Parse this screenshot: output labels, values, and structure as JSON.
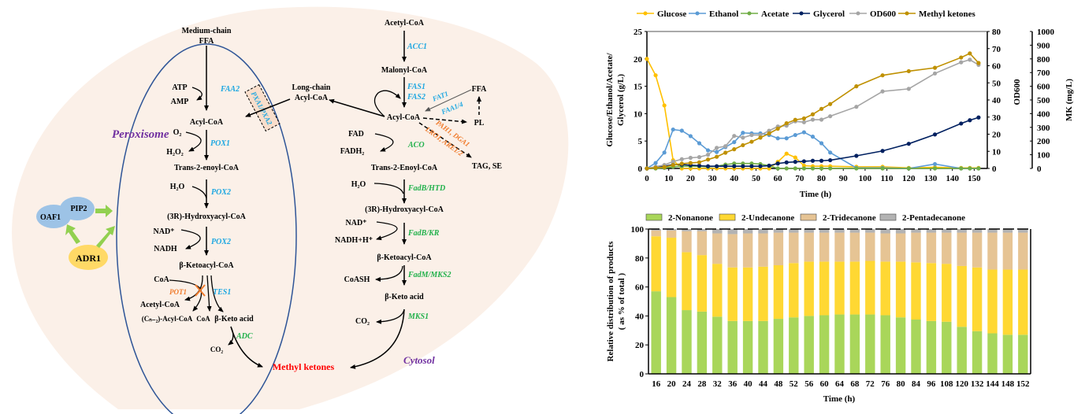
{
  "diagram": {
    "peroxisome_label": "Peroxisome",
    "cytosol_label": "Cytosol",
    "regulators": {
      "oaf1": "OAF1",
      "pip2": "PIP2",
      "adr1": "ADR1"
    },
    "colors": {
      "cell_bg": "#fbf0e8",
      "gene_blue": "#1ea7e1",
      "gene_green": "#22b14c",
      "gene_orange": "#f07b2c",
      "compartment_label": "#7030a0",
      "product_red": "#ff0000",
      "membrane": "#2f5597",
      "reg_blue": "#9dc3e6",
      "reg_yellow": "#ffd966",
      "reg_arrow": "#92d050"
    },
    "peroxisome_path": {
      "start_line1": "Medium-chain",
      "start_line2": "FFA",
      "atp": "ATP",
      "amp": "AMP",
      "faa2": "FAA2",
      "acyl_coa": "Acyl-CoA",
      "o2": "O₂",
      "h2o2": "H₂O₂",
      "pox1": "POX1",
      "trans_enoyl": "Trans-2-enoyl-CoA",
      "h2o": "H₂O",
      "pox2_a": "POX2",
      "hydroxyacyl": "(3R)-Hydroxyacyl-CoA",
      "nad": "NAD⁺",
      "nadh": "NADH",
      "pox2_b": "POX2",
      "ketoacyl": "β-Ketoacyl-CoA",
      "coa": "CoA",
      "pot1": "POT1",
      "tes1": "TES1",
      "acetyl_coa": "Acetyl-CoA",
      "cn2_acyl": "(Cₙ₋₂)-Acyl-CoA",
      "coa2": "CoA",
      "keto_acid": "β-Keto acid",
      "adc": "ADC",
      "co2": "CO₂",
      "transporter": "PXA1/PXA2"
    },
    "long_chain_line1": "Long-chain",
    "long_chain_line2": "Acyl-CoA",
    "methyl_ketones": "Methyl ketones",
    "cytosol_path": {
      "acetyl_coa": "Acetyl-CoA",
      "acc1": "ACC1",
      "malonyl_coa": "Malonyl-CoA",
      "fas1": "FAS1",
      "fas2": "FAS2",
      "acyl_coa": "Acyl-CoA",
      "ffa": "FFA",
      "fat1": "FAT1",
      "faa14": "FAA1/4",
      "pl": "PL",
      "pah1": "PAH1, DGA1",
      "lro1": "LRO1, ARE1/2",
      "tag_se": "TAG, SE",
      "fad": "FAD",
      "fadh2": "FADH₂",
      "aco": "ACO",
      "trans_enoyl": "Trans-2-Enoyl-CoA",
      "h2o": "H₂O",
      "fadb_htd": "FadB/HTD",
      "hydroxyacyl": "(3R)-Hydroxyacyl-CoA",
      "nad": "NAD⁺",
      "nadh": "NADH+H⁺",
      "fadb_kr": "FadB/KR",
      "ketoacyl": "β-Ketoacyl-CoA",
      "coash": "CoASH",
      "fadm_mks2": "FadM/MKS2",
      "keto_acid": "β-Keto acid",
      "co2": "CO₂",
      "mks1": "MKS1"
    }
  },
  "chart_data": [
    {
      "type": "line",
      "title": "",
      "xlabel": "Time (h)",
      "ylabel": "Glucose/Ethanol/Acetate/Glycerol (g/L)",
      "ylabel_line1": "Glucose/Ethanol/Acetate/",
      "ylabel_line2": "Glycerol (g/L)",
      "y2label": "OD600",
      "y3label": "MK (mg/L)",
      "xlim": [
        0,
        156
      ],
      "xticks": [
        0,
        10,
        20,
        30,
        40,
        50,
        60,
        70,
        80,
        90,
        100,
        110,
        120,
        130,
        140,
        150
      ],
      "ylim": [
        0,
        25
      ],
      "yticks": [
        0,
        5,
        10,
        15,
        20,
        25
      ],
      "y2lim": [
        0,
        80
      ],
      "y2ticks": [
        0,
        10,
        20,
        30,
        40,
        50,
        60,
        70,
        80
      ],
      "y3lim": [
        0,
        1000
      ],
      "y3ticks": [
        0,
        100,
        200,
        300,
        400,
        500,
        600,
        700,
        800,
        900,
        1000
      ],
      "legend_position": "top",
      "grid": false,
      "series": [
        {
          "name": "Glucose",
          "axis": "left",
          "color": "#ffc000",
          "x": [
            0,
            4,
            8,
            12,
            16,
            20,
            24,
            28,
            32,
            36,
            40,
            44,
            48,
            52,
            56,
            60,
            64,
            68,
            72,
            76,
            80,
            84,
            96,
            108,
            120,
            132,
            144,
            148,
            152
          ],
          "y": [
            20,
            17,
            11.5,
            1.5,
            0,
            0,
            0,
            0,
            0,
            0,
            0,
            0,
            0,
            0,
            0,
            1.2,
            2.7,
            2.0,
            0.5,
            0.4,
            0.4,
            0.4,
            0.3,
            0.3,
            0.1,
            0.2,
            0.1,
            0.1,
            0.1
          ]
        },
        {
          "name": "Ethanol",
          "axis": "left",
          "color": "#5b9bd5",
          "x": [
            0,
            4,
            8,
            12,
            16,
            20,
            24,
            28,
            32,
            36,
            40,
            44,
            48,
            52,
            56,
            60,
            64,
            68,
            72,
            76,
            80,
            84,
            96,
            108,
            120,
            132,
            144,
            148,
            152
          ],
          "y": [
            0,
            1.0,
            2.9,
            7.1,
            6.9,
            5.9,
            4.6,
            3.3,
            3.0,
            3.9,
            4.8,
            6.5,
            6.4,
            6.4,
            6.1,
            5.5,
            5.5,
            6.1,
            6.6,
            5.8,
            4.6,
            2.9,
            0.1,
            0.1,
            0.0,
            0.8,
            0.0,
            0.0,
            0.0
          ]
        },
        {
          "name": "Acetate",
          "axis": "left",
          "color": "#70ad47",
          "x": [
            0,
            4,
            8,
            12,
            16,
            20,
            24,
            28,
            32,
            36,
            40,
            44,
            48,
            52,
            56,
            60,
            64,
            68,
            72,
            76,
            80,
            84,
            96,
            108,
            120,
            132,
            144,
            148,
            152
          ],
          "y": [
            0,
            0,
            0.1,
            0.3,
            0.4,
            0.4,
            0.4,
            0.3,
            0.4,
            0.7,
            0.9,
            0.9,
            0.9,
            0.8,
            0.5,
            0,
            0,
            0,
            0,
            0,
            0,
            0,
            0,
            0,
            0,
            0,
            0,
            0,
            0
          ]
        },
        {
          "name": "Glycerol",
          "axis": "left",
          "color": "#002060",
          "x": [
            0,
            4,
            8,
            12,
            16,
            20,
            24,
            28,
            32,
            36,
            40,
            44,
            48,
            52,
            56,
            60,
            64,
            68,
            72,
            76,
            80,
            84,
            96,
            108,
            120,
            132,
            144,
            148,
            152
          ],
          "y": [
            0,
            0.2,
            0.4,
            0.7,
            0.7,
            0.6,
            0.5,
            0.4,
            0.4,
            0.4,
            0.4,
            0.4,
            0.4,
            0.4,
            0.5,
            0.9,
            1.1,
            1.2,
            1.3,
            1.4,
            1.4,
            1.5,
            2.3,
            3.2,
            4.5,
            6.2,
            8.2,
            8.8,
            9.3
          ]
        },
        {
          "name": "OD600",
          "axis": "right_od",
          "color": "#a5a5a5",
          "x": [
            0,
            4,
            8,
            12,
            16,
            20,
            24,
            28,
            32,
            36,
            40,
            44,
            48,
            52,
            56,
            60,
            64,
            68,
            72,
            76,
            80,
            84,
            96,
            108,
            120,
            132,
            144,
            148,
            152
          ],
          "y": [
            0,
            1.0,
            2.0,
            4.0,
            5.4,
            6.2,
            6.6,
            8.0,
            12.0,
            13.0,
            19.0,
            18.0,
            19.5,
            19.5,
            22.0,
            24.5,
            25.0,
            27.5,
            27.0,
            28.5,
            28.5,
            30.5,
            36.0,
            45.0,
            46.5,
            55.5,
            62.0,
            63.5,
            60.5
          ]
        },
        {
          "name": "Methyl ketones",
          "axis": "right_mk",
          "color": "#bf9000",
          "x": [
            0,
            4,
            8,
            12,
            16,
            20,
            24,
            28,
            32,
            36,
            40,
            44,
            48,
            52,
            56,
            60,
            64,
            68,
            72,
            76,
            80,
            84,
            96,
            108,
            120,
            132,
            144,
            148,
            152
          ],
          "y": [
            0,
            5,
            10,
            25,
            35,
            40,
            45,
            65,
            85,
            115,
            140,
            170,
            195,
            225,
            255,
            290,
            330,
            355,
            365,
            395,
            435,
            470,
            600,
            680,
            710,
            735,
            810,
            840,
            770
          ]
        }
      ]
    },
    {
      "type": "bar",
      "stacked": true,
      "title": "",
      "xlabel": "Time (h)",
      "ylabel": "Relative distribution of products ( as % of total )",
      "ylabel_line1": "Relative distribution of products",
      "ylabel_line2": "( as % of total )",
      "ylim": [
        0,
        100
      ],
      "yticks": [
        0,
        20,
        40,
        60,
        80,
        100
      ],
      "legend_position": "top",
      "grid": false,
      "categories": [
        "16",
        "20",
        "24",
        "28",
        "32",
        "36",
        "40",
        "44",
        "48",
        "52",
        "56",
        "60",
        "64",
        "68",
        "72",
        "76",
        "80",
        "84",
        "96",
        "108",
        "120",
        "132",
        "144",
        "148",
        "152"
      ],
      "series": [
        {
          "name": "2-Nonanone",
          "color": "#a9d65a",
          "values": [
            57,
            53,
            44,
            43,
            39.5,
            36.5,
            36.5,
            36.5,
            38,
            39,
            40,
            40.5,
            41,
            41,
            41,
            40.5,
            39,
            37.5,
            36.5,
            36,
            32.5,
            29.5,
            28,
            27,
            27
          ]
        },
        {
          "name": "2-Undecanone",
          "color": "#ffd833",
          "values": [
            38,
            41,
            40,
            39,
            36.5,
            37,
            37,
            37.5,
            37,
            37.5,
            37.5,
            37,
            36.5,
            36.5,
            37,
            37,
            38.5,
            39.5,
            40,
            40,
            42,
            44,
            44,
            45,
            45
          ]
        },
        {
          "name": "2-Tridecanone",
          "color": "#e6c494",
          "values": [
            4,
            5,
            14.5,
            16.5,
            21,
            23,
            23.5,
            23,
            22.5,
            21,
            20,
            20,
            20,
            20,
            19.5,
            19.5,
            19.5,
            20.5,
            21,
            21.5,
            23,
            24,
            25.5,
            25.5,
            25.5
          ]
        },
        {
          "name": "2-Pentadecanone",
          "color": "#b3b3b3",
          "values": [
            1,
            1,
            1.5,
            1.5,
            3,
            3.5,
            3,
            3,
            2.5,
            2.5,
            2.5,
            2.5,
            2.5,
            2.5,
            2.5,
            3,
            3,
            2.5,
            2.5,
            2.5,
            2.5,
            2.5,
            2.5,
            2.5,
            2.5
          ]
        }
      ]
    }
  ]
}
